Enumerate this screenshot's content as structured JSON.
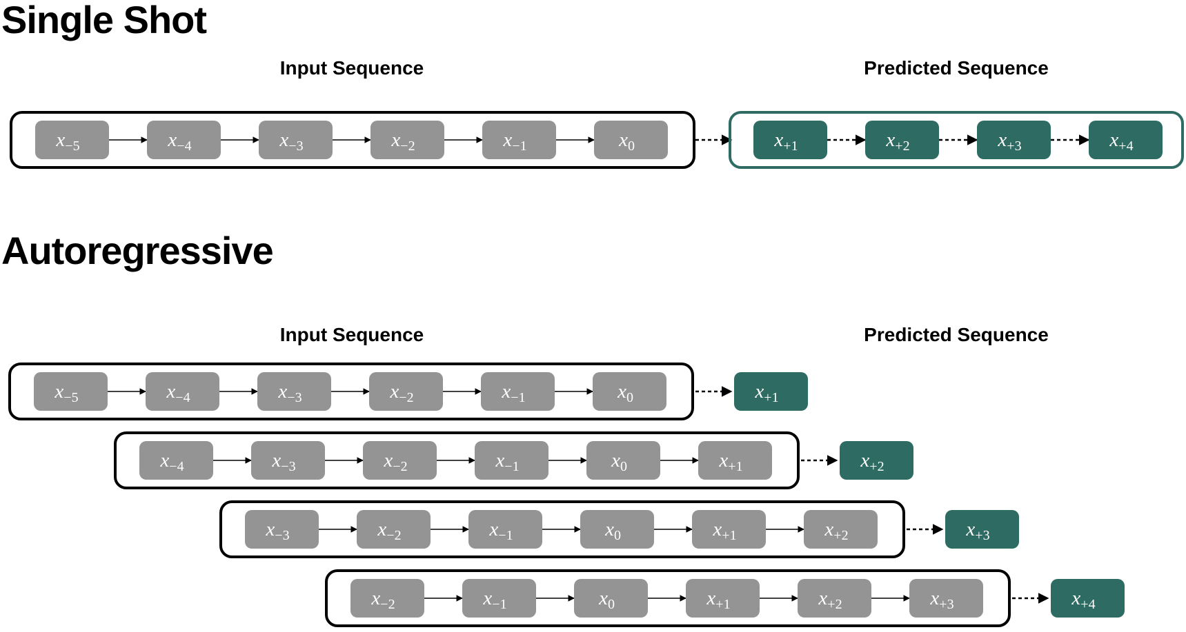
{
  "colors": {
    "input_token": "#949494",
    "predicted_token": "#2e6b62",
    "frame": "#000000",
    "predicted_frame": "#2e6b62"
  },
  "single_shot": {
    "title": "Single Shot",
    "input_label": "Input Sequence",
    "predicted_label": "Predicted Sequence",
    "inputs": [
      "−5",
      "−4",
      "−3",
      "−2",
      "−1",
      "0"
    ],
    "outputs": [
      "+1",
      "+2",
      "+3",
      "+4"
    ]
  },
  "autoregressive": {
    "title": "Autoregressive",
    "input_label": "Input Sequence",
    "predicted_label": "Predicted Sequence",
    "steps": [
      {
        "inputs": [
          "−5",
          "−4",
          "−3",
          "−2",
          "−1",
          "0"
        ],
        "output": "+1"
      },
      {
        "inputs": [
          "−4",
          "−3",
          "−2",
          "−1",
          "0",
          "+1"
        ],
        "output": "+2"
      },
      {
        "inputs": [
          "−3",
          "−2",
          "−1",
          "0",
          "+1",
          "+2"
        ],
        "output": "+3"
      },
      {
        "inputs": [
          "−2",
          "−1",
          "0",
          "+1",
          "+2",
          "+3"
        ],
        "output": "+4"
      }
    ]
  }
}
